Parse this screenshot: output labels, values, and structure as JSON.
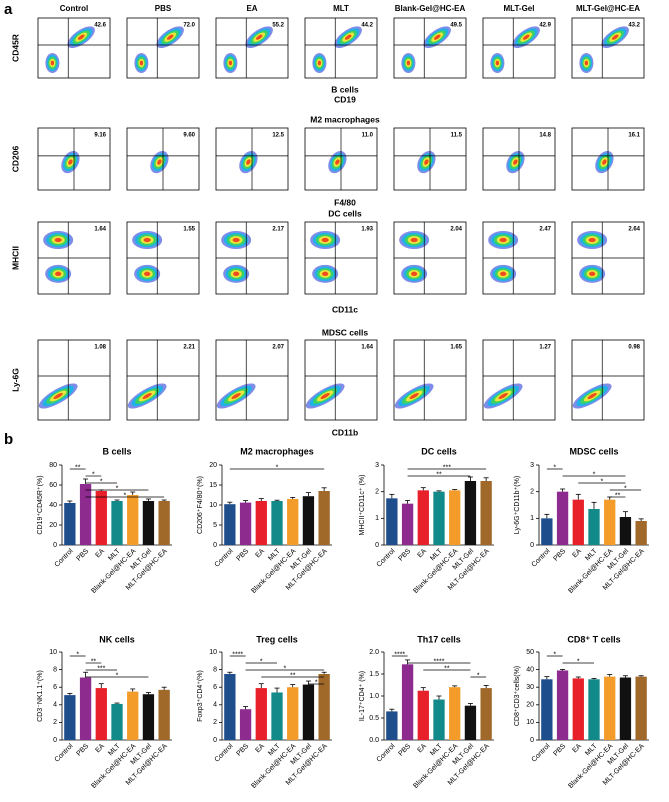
{
  "panel_a": {
    "label": "a",
    "columns": [
      "Control",
      "PBS",
      "EA",
      "MLT",
      "Blank-Gel@HC-EA",
      "MLT-Gel",
      "MLT-Gel@HC-EA"
    ],
    "rows": [
      {
        "title": "B cells",
        "x_label": "CD19",
        "y_label": "CD45R",
        "percentages": [
          "42.6",
          "72.0",
          "55.2",
          "44.2",
          "49.5",
          "42.9",
          "43.2"
        ]
      },
      {
        "title": "M2 macrophages",
        "x_label": "F4/80",
        "y_label": "CD206",
        "percentages": [
          "9.16",
          "9.60",
          "12.5",
          "11.0",
          "11.5",
          "14.8",
          "16.1"
        ]
      },
      {
        "title": "DC cells",
        "x_label": "CD11c",
        "y_label": "MHCII",
        "percentages": [
          "1.64",
          "1.55",
          "2.17",
          "1.93",
          "2.04",
          "2.47",
          "2.64"
        ]
      },
      {
        "title": "MDSC cells",
        "x_label": "CD11b",
        "y_label": "Ly-6G",
        "percentages": [
          "1.08",
          "2.21",
          "2.07",
          "1.64",
          "1.65",
          "1.27",
          "0.98"
        ]
      }
    ]
  },
  "panel_b_label": "b",
  "chart_data": [
    {
      "type": "bar",
      "title": "B cells",
      "y_label": "CD19⁺CD45R⁺(%)",
      "categories": [
        "Control",
        "PBS",
        "EA",
        "MLT",
        "Blank-Gel@HC-EA",
        "MLT-Gel",
        "MLT-Gel@HC-EA"
      ],
      "values": [
        42,
        61,
        54,
        44,
        50,
        44,
        44
      ],
      "errors": [
        2,
        5,
        1,
        1,
        3,
        2,
        1
      ],
      "colors": [
        "#1f4e8c",
        "#8e2b8e",
        "#e8202a",
        "#138a8a",
        "#f39c2a",
        "#111111",
        "#a0692a"
      ],
      "ylim": [
        0,
        80
      ],
      "yticks": [
        0,
        20,
        40,
        60,
        80
      ],
      "significance": [
        {
          "from": 0,
          "to": 1,
          "label": "**"
        },
        {
          "from": 1,
          "to": 2,
          "label": "*"
        },
        {
          "from": 1,
          "to": 3,
          "label": "*"
        },
        {
          "from": 1,
          "to": 5,
          "label": "*"
        },
        {
          "from": 1,
          "to": 6,
          "label": "*"
        }
      ]
    },
    {
      "type": "bar",
      "title": "M2 macrophages",
      "y_label": "CD206⁺F4/80⁺(%)",
      "categories": [
        "Control",
        "PBS",
        "EA",
        "MLT",
        "Blank-Gel@HC-EA",
        "MLT-Gel",
        "MLT-Gel@HC-EA"
      ],
      "values": [
        10.2,
        10.6,
        11,
        11,
        11.5,
        12.2,
        13.5
      ],
      "errors": [
        0.5,
        0.5,
        0.6,
        0.2,
        0.4,
        0.9,
        0.8
      ],
      "colors": [
        "#1f4e8c",
        "#8e2b8e",
        "#e8202a",
        "#138a8a",
        "#f39c2a",
        "#111111",
        "#a0692a"
      ],
      "ylim": [
        0,
        20
      ],
      "yticks": [
        0,
        5,
        10,
        15,
        20
      ],
      "significance": [
        {
          "from": 0,
          "to": 6,
          "label": "*"
        }
      ]
    },
    {
      "type": "bar",
      "title": "DC cells",
      "y_label": "MHCII⁺CD11c⁺ (%)",
      "categories": [
        "Control",
        "PBS",
        "EA",
        "MLT",
        "Blank-Gel@HC-EA",
        "MLT-Gel",
        "MLT-Gel@HC-EA"
      ],
      "values": [
        1.75,
        1.55,
        2.05,
        2,
        2.05,
        2.4,
        2.4
      ],
      "errors": [
        0.15,
        0.12,
        0.1,
        0.03,
        0.03,
        0.15,
        0.12
      ],
      "colors": [
        "#1f4e8c",
        "#8e2b8e",
        "#e8202a",
        "#138a8a",
        "#f39c2a",
        "#111111",
        "#a0692a"
      ],
      "ylim": [
        0,
        3
      ],
      "yticks": [
        0,
        1,
        2,
        3
      ],
      "significance": [
        {
          "from": 1,
          "to": 6,
          "label": "***"
        },
        {
          "from": 1,
          "to": 5,
          "label": "**"
        }
      ]
    },
    {
      "type": "bar",
      "title": "MDSC cells",
      "y_label": "Ly-6G⁺CD11b⁺(%)",
      "categories": [
        "Control",
        "PBS",
        "EA",
        "MLT",
        "Blank-Gel@HC-EA",
        "MLT-Gel",
        "MLT-Gel@HC-EA"
      ],
      "values": [
        1,
        2,
        1.7,
        1.35,
        1.7,
        1.05,
        0.9
      ],
      "errors": [
        0.15,
        0.1,
        0.2,
        0.25,
        0.1,
        0.2,
        0.08
      ],
      "colors": [
        "#1f4e8c",
        "#8e2b8e",
        "#e8202a",
        "#138a8a",
        "#f39c2a",
        "#111111",
        "#a0692a"
      ],
      "ylim": [
        0,
        3
      ],
      "yticks": [
        0,
        1,
        2,
        3
      ],
      "significance": [
        {
          "from": 0,
          "to": 1,
          "label": "*"
        },
        {
          "from": 1,
          "to": 5,
          "label": "*"
        },
        {
          "from": 2,
          "to": 5,
          "label": "*"
        },
        {
          "from": 4,
          "to": 6,
          "label": "*"
        },
        {
          "from": 4,
          "to": 5,
          "label": "**"
        }
      ]
    },
    {
      "type": "bar",
      "title": "NK cells",
      "y_label": "CD3⁻NK1.1⁺(%)",
      "categories": [
        "Control",
        "PBS",
        "EA",
        "MLT",
        "Blank-Gel@HC-EA",
        "MLT-Gel",
        "MLT-Gel@HC-EA"
      ],
      "values": [
        5.1,
        7.1,
        5.9,
        4.1,
        5.5,
        5.2,
        5.7
      ],
      "errors": [
        0.2,
        0.6,
        0.5,
        0.1,
        0.3,
        0.2,
        0.3
      ],
      "colors": [
        "#1f4e8c",
        "#8e2b8e",
        "#e8202a",
        "#138a8a",
        "#f39c2a",
        "#111111",
        "#a0692a"
      ],
      "ylim": [
        0,
        10
      ],
      "yticks": [
        0,
        2,
        4,
        6,
        8,
        10
      ],
      "significance": [
        {
          "from": 0,
          "to": 1,
          "label": "*"
        },
        {
          "from": 1,
          "to": 2,
          "label": "**"
        },
        {
          "from": 1,
          "to": 3,
          "label": "***"
        },
        {
          "from": 1,
          "to": 5,
          "label": "*"
        }
      ]
    },
    {
      "type": "bar",
      "title": "Treg cells",
      "y_label": "Foxp3⁺CD4⁺(%)",
      "categories": [
        "Control",
        "PBS",
        "EA",
        "MLT",
        "Blank-Gel@HC-EA",
        "MLT-Gel",
        "MLT-Gel@HC-EA"
      ],
      "values": [
        7.5,
        3.5,
        5.9,
        5.4,
        6,
        6.3,
        7.5
      ],
      "errors": [
        0.2,
        0.3,
        0.5,
        0.5,
        0.3,
        0.4,
        0.2
      ],
      "colors": [
        "#1f4e8c",
        "#8e2b8e",
        "#e8202a",
        "#138a8a",
        "#f39c2a",
        "#111111",
        "#a0692a"
      ],
      "ylim": [
        0,
        10
      ],
      "yticks": [
        0,
        2,
        4,
        6,
        8,
        10
      ],
      "significance": [
        {
          "from": 0,
          "to": 1,
          "label": "****"
        },
        {
          "from": 1,
          "to": 3,
          "label": "*"
        },
        {
          "from": 1,
          "to": 6,
          "label": "*"
        },
        {
          "from": 2,
          "to": 6,
          "label": "**"
        },
        {
          "from": 5,
          "to": 6,
          "label": "*"
        }
      ]
    },
    {
      "type": "bar",
      "title": "Th17 cells",
      "y_label": "IL-17⁺CD4⁺ (%)",
      "categories": [
        "Control",
        "PBS",
        "EA",
        "MLT",
        "Blank-Gel@HC-EA",
        "MLT-Gel",
        "MLT-Gel@HC-EA"
      ],
      "values": [
        0.65,
        1.72,
        1.12,
        0.92,
        1.2,
        0.78,
        1.18
      ],
      "errors": [
        0.05,
        0.1,
        0.07,
        0.08,
        0.03,
        0.05,
        0.06
      ],
      "colors": [
        "#1f4e8c",
        "#8e2b8e",
        "#e8202a",
        "#138a8a",
        "#f39c2a",
        "#111111",
        "#a0692a"
      ],
      "ylim": [
        0,
        2
      ],
      "yticks": [
        {
          "value": 0,
          "label": "0.0"
        },
        0.5,
        {
          "value": 1,
          "label": "1.0"
        },
        1.5,
        {
          "value": 2,
          "label": "2.0"
        }
      ],
      "significance": [
        {
          "from": 0,
          "to": 1,
          "label": "****"
        },
        {
          "from": 1,
          "to": 5,
          "label": "****"
        },
        {
          "from": 2,
          "to": 5,
          "label": "**"
        },
        {
          "from": 5,
          "to": 6,
          "label": "*"
        }
      ]
    },
    {
      "type": "bar",
      "title": "CD8⁺ T cells",
      "y_label": "CD8⁺CD3⁺cells(%)",
      "categories": [
        "Control",
        "PBS",
        "EA",
        "MLT",
        "Blank-Gel@HC-EA",
        "MLT-Gel",
        "MLT-Gel@HC-EA"
      ],
      "values": [
        34.5,
        39.5,
        35,
        34.5,
        36,
        35.5,
        36
      ],
      "errors": [
        1.5,
        0.6,
        0.8,
        0.5,
        1.2,
        1,
        0.5
      ],
      "colors": [
        "#1f4e8c",
        "#8e2b8e",
        "#e8202a",
        "#138a8a",
        "#f39c2a",
        "#111111",
        "#a0692a"
      ],
      "ylim": [
        0,
        50
      ],
      "yticks": [
        0,
        10,
        20,
        30,
        40,
        50
      ],
      "significance": [
        {
          "from": 0,
          "to": 1,
          "label": "*"
        },
        {
          "from": 1,
          "to": 3,
          "label": "*"
        }
      ]
    }
  ]
}
